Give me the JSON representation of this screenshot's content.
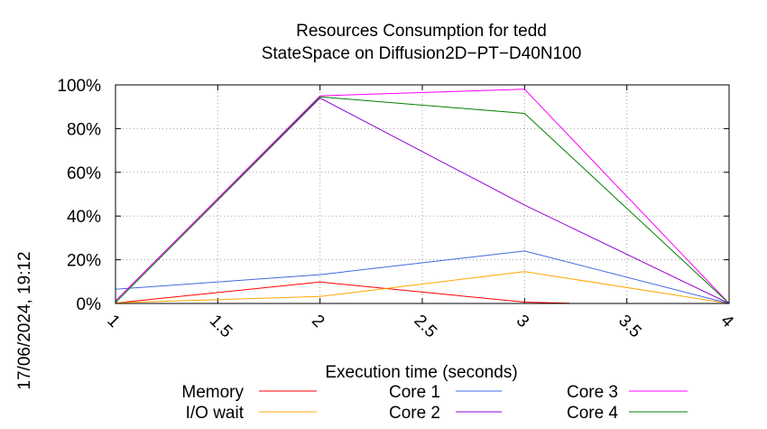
{
  "chart_data": {
    "type": "line",
    "title": "Resources Consumption for tedd",
    "subtitle": "StateSpace on Diffusion2D−PT−D40N100",
    "xlabel": "Execution time (seconds)",
    "ylabel": "",
    "side_label": "17/06/2024, 19:12",
    "xlim": [
      1,
      4
    ],
    "ylim": [
      0,
      100
    ],
    "x_ticks": [
      {
        "value": 1,
        "label": "1"
      },
      {
        "value": 1.5,
        "label": "1.5"
      },
      {
        "value": 2,
        "label": "2"
      },
      {
        "value": 2.5,
        "label": "2.5"
      },
      {
        "value": 3,
        "label": "3"
      },
      {
        "value": 3.5,
        "label": "3.5"
      },
      {
        "value": 4,
        "label": "4"
      }
    ],
    "y_ticks": [
      {
        "value": 0,
        "label": "0%"
      },
      {
        "value": 20,
        "label": "20%"
      },
      {
        "value": 40,
        "label": "40%"
      },
      {
        "value": 60,
        "label": "60%"
      },
      {
        "value": 80,
        "label": "80%"
      },
      {
        "value": 100,
        "label": "100%"
      }
    ],
    "grid": true,
    "legend_position": "bottom",
    "series": [
      {
        "name": "Memory",
        "color": "#ff0000",
        "points": [
          [
            1,
            0.2
          ],
          [
            2,
            9.8
          ],
          [
            3,
            0.6
          ],
          [
            3.22,
            0.1
          ]
        ]
      },
      {
        "name": "I/O wait",
        "color": "#ffa500",
        "points": [
          [
            1,
            0.3
          ],
          [
            2,
            3.2
          ],
          [
            3,
            14.6
          ],
          [
            4,
            0
          ]
        ]
      },
      {
        "name": "Core 1",
        "color": "#4169e1",
        "points": [
          [
            1,
            6.5
          ],
          [
            2,
            13.2
          ],
          [
            3,
            24
          ],
          [
            4,
            0
          ]
        ]
      },
      {
        "name": "Core 2",
        "color": "#9400d3",
        "points": [
          [
            1,
            0.5
          ],
          [
            2,
            94
          ],
          [
            3,
            45
          ],
          [
            4,
            0
          ]
        ]
      },
      {
        "name": "Core 3",
        "color": "#ff00ff",
        "points": [
          [
            1,
            1.2
          ],
          [
            2,
            95
          ],
          [
            3,
            98
          ],
          [
            4,
            0
          ]
        ]
      },
      {
        "name": "Core 4",
        "color": "#008000",
        "points": [
          [
            1,
            0.4
          ],
          [
            2,
            94.5
          ],
          [
            3,
            87
          ],
          [
            4,
            0
          ]
        ]
      }
    ]
  }
}
